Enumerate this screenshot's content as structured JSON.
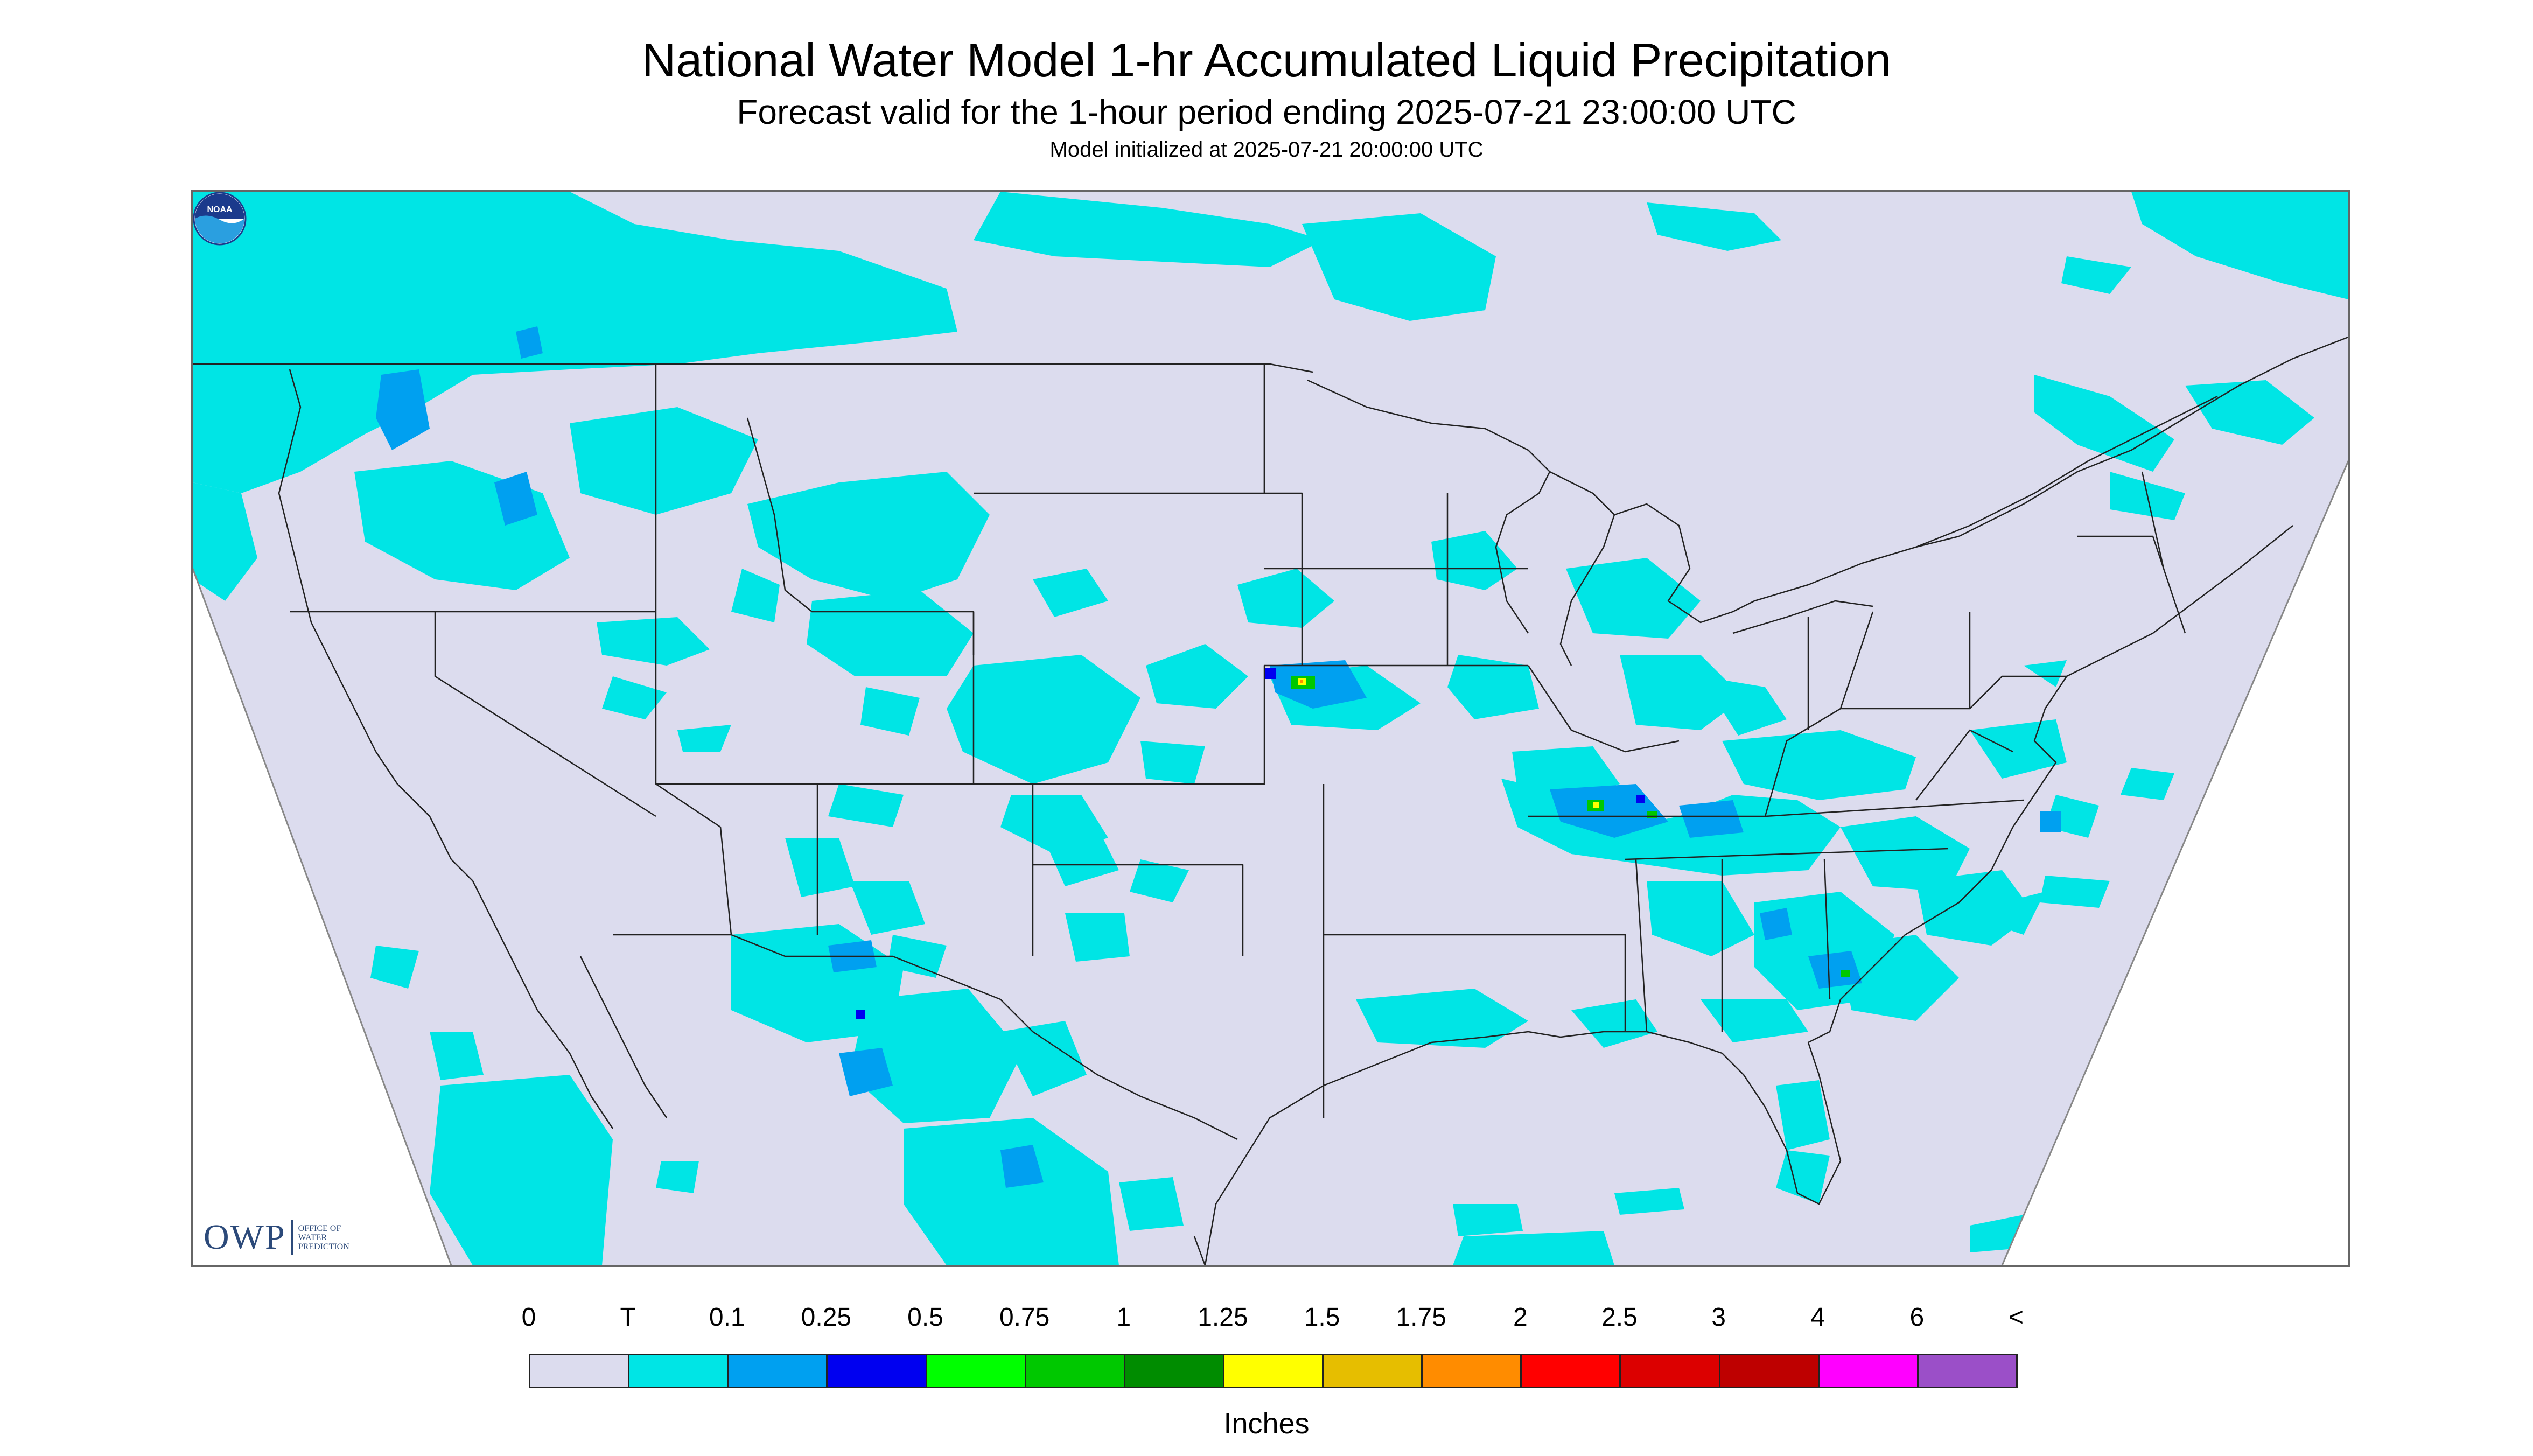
{
  "header": {
    "title": "National Water Model 1-hr Accumulated Liquid Precipitation",
    "subtitle": "Forecast valid for the 1-hour period ending 2025-07-21 23:00:00 UTC",
    "init": "Model initialized at 2025-07-21 20:00:00 UTC"
  },
  "map": {
    "background_color": "#dcdcee",
    "projection_edge_color": "#ffffff",
    "owp_logo": {
      "main": "OWP",
      "sub": "OFFICE OF WATER PREDICTION"
    },
    "noaa_logo": "NOAA"
  },
  "legend": {
    "ticks": [
      "0",
      "T",
      "0.1",
      "0.25",
      "0.5",
      "0.75",
      "1",
      "1.25",
      "1.5",
      "1.75",
      "2",
      "2.5",
      "3",
      "4",
      "6",
      "<"
    ],
    "colors": [
      "#dcdcee",
      "#00e5e5",
      "#00a0f0",
      "#0000f0",
      "#00ff00",
      "#00c800",
      "#008c00",
      "#ffff00",
      "#e6be00",
      "#ff8c00",
      "#ff0000",
      "#dc0000",
      "#be0000",
      "#ff00ff",
      "#9b4fc8"
    ],
    "units": "Inches"
  }
}
